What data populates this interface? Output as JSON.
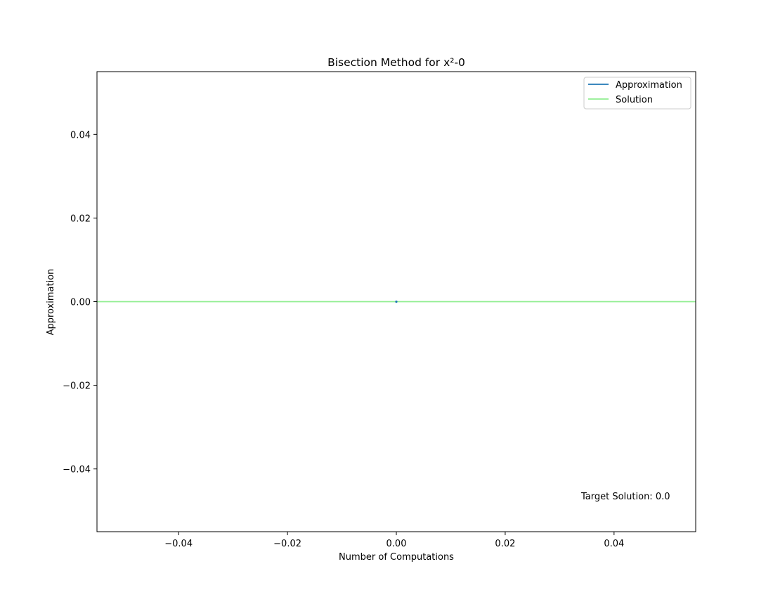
{
  "chart_data": {
    "type": "line",
    "title": "Bisection Method for x²-0",
    "xlabel": "Number of Computations",
    "ylabel": "Approximation",
    "xlim": [
      -0.055,
      0.055
    ],
    "ylim": [
      -0.055,
      0.055
    ],
    "x_ticks": [
      -0.04,
      -0.02,
      0.0,
      0.02,
      0.04
    ],
    "x_tick_labels": [
      "−0.04",
      "−0.02",
      "0.00",
      "0.02",
      "0.04"
    ],
    "y_ticks": [
      0.04,
      0.02,
      0.0,
      -0.02,
      -0.04
    ],
    "y_tick_labels": [
      "0.04",
      "0.02",
      "0.00",
      "−0.02",
      "−0.04"
    ],
    "grid": false,
    "legend_position": "top-right",
    "series": [
      {
        "name": "Approximation",
        "color": "#1f77b4",
        "x": [
          0
        ],
        "y": [
          0.0
        ]
      },
      {
        "name": "Solution",
        "color": "#90ee90",
        "kind": "horizontal-line",
        "y": 0.0
      }
    ],
    "annotation": "Target Solution: 0.0"
  }
}
